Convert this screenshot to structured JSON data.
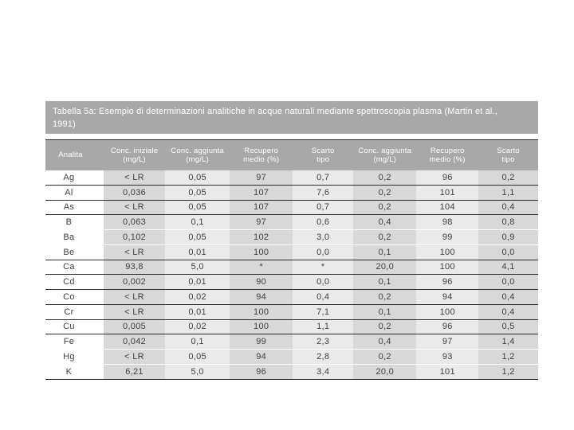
{
  "slide": {
    "title_lines": [
      "Tabella 5a: Esempio di determinazioni analitiche in acque naturali mediante spettroscopia plasma (Martin et al.,",
      "1991)"
    ]
  },
  "table": {
    "columns": [
      "Analita",
      "Conc. iniziale\n(mg/L)",
      "Conc. aggiunta\n(mg/L)",
      "Recupero\nmedio (%)",
      "Scarto\ntipo",
      "Conc. aggiunta\n(mg/L)",
      "Recupero\nmedio (%)",
      "Scarto\ntipo"
    ],
    "rows": [
      {
        "cells": [
          "Ag",
          "< LR",
          "0,05",
          "97",
          "0,7",
          "0,2",
          "96",
          "0,2"
        ],
        "rule": true
      },
      {
        "cells": [
          "Al",
          "0,036",
          "0,05",
          "107",
          "7,6",
          "0,2",
          "101",
          "1,1"
        ],
        "rule": true
      },
      {
        "cells": [
          "As",
          "< LR",
          "0,05",
          "107",
          "0,7",
          "0,2",
          "104",
          "0,4"
        ],
        "rule": true
      },
      {
        "cells": [
          "B",
          "0,063",
          "0,1",
          "97",
          "0,6",
          "0,4",
          "98",
          "0,8"
        ],
        "rule": false
      },
      {
        "cells": [
          "Ba",
          "0,102",
          "0,05",
          "102",
          "3,0",
          "0,2",
          "99",
          "0,9"
        ],
        "rule": false
      },
      {
        "cells": [
          "Be",
          "< LR",
          "0,01",
          "100",
          "0,0",
          "0,1",
          "100",
          "0,0"
        ],
        "rule": true
      },
      {
        "cells": [
          "Ca",
          "93,8",
          "5,0",
          "*",
          "*",
          "20,0",
          "100",
          "4,1"
        ],
        "rule": true
      },
      {
        "cells": [
          "Cd",
          "0,002",
          "0,01",
          "90",
          "0,0",
          "0,1",
          "96",
          "0,0"
        ],
        "rule": true
      },
      {
        "cells": [
          "Co",
          "< LR",
          "0,02",
          "94",
          "0,4",
          "0,2",
          "94",
          "0,4"
        ],
        "rule": true
      },
      {
        "cells": [
          "Cr",
          "< LR",
          "0,01",
          "100",
          "7,1",
          "0,1",
          "100",
          "0,4"
        ],
        "rule": true
      },
      {
        "cells": [
          "Cu",
          "0,005",
          "0,02",
          "100",
          "1,1",
          "0,2",
          "96",
          "0,5"
        ],
        "rule": true
      },
      {
        "cells": [
          "Fe",
          "0,042",
          "0,1",
          "99",
          "2,3",
          "0,4",
          "97",
          "1,4"
        ],
        "rule": false
      },
      {
        "cells": [
          "Hg",
          "< LR",
          "0,05",
          "94",
          "2,8",
          "0,2",
          "93",
          "1,2"
        ],
        "rule": false
      },
      {
        "cells": [
          "K",
          "6,21",
          "5,0",
          "96",
          "3,4",
          "20,0",
          "101",
          "1,2"
        ],
        "rule": true
      }
    ]
  },
  "colors": {
    "band_gray": "#a8a8a8",
    "stripe_dark": "#d8d8d8",
    "stripe_light": "#eaeaea",
    "rule_line": "#2b2b2b",
    "text_dark": "#3e3e3e",
    "text_light": "#ffffff"
  }
}
